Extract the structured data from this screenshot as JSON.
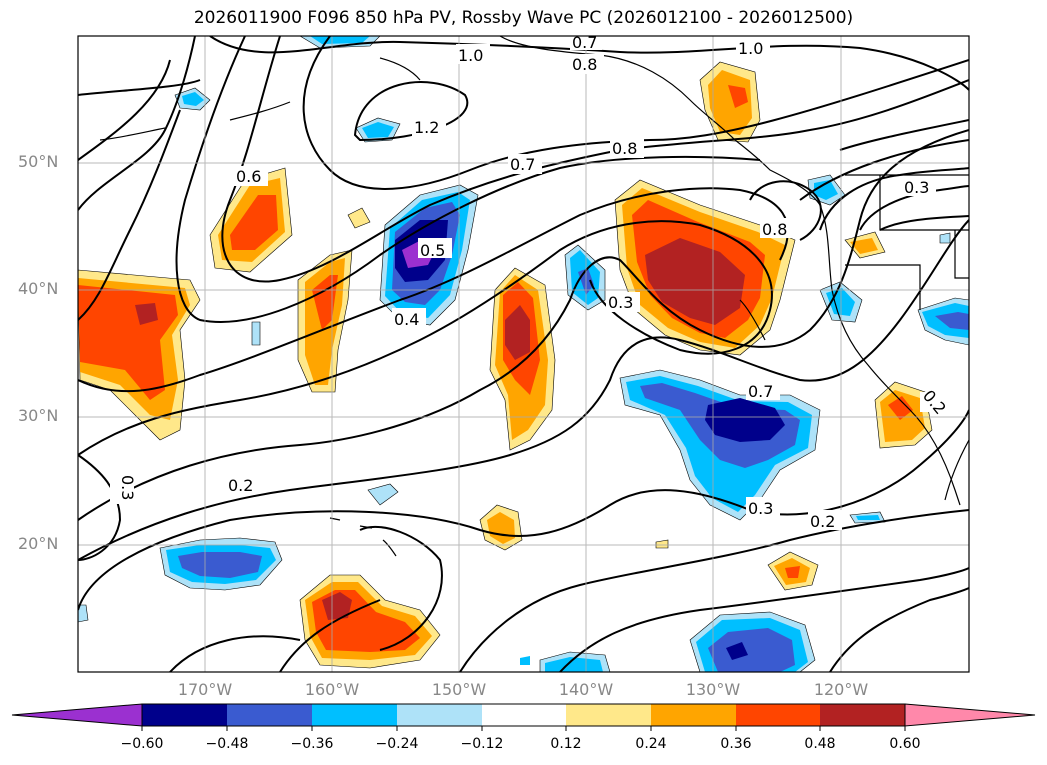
{
  "title": "2026011900 F096 850 hPa PV, Rossby Wave PC (2026012100 - 2026012500)",
  "lat_labels": [
    "50°N",
    "40°N",
    "30°N",
    "20°N"
  ],
  "lon_labels": [
    "170°W",
    "160°W",
    "150°W",
    "140°W",
    "130°W",
    "120°W"
  ],
  "contour_labels": [
    "1.0",
    "0.7",
    "0.8",
    "1.0",
    "1.2",
    "0.6",
    "0.7",
    "0.8",
    "0.8",
    "0.3",
    "0.5",
    "0.4",
    "0.3",
    "0.7",
    "0.3",
    "0.2",
    "0.3",
    "0.2",
    "0.2"
  ],
  "colorbar": {
    "ticks": [
      "−0.60",
      "−0.48",
      "−0.36",
      "−0.24",
      "−0.12",
      "0.12",
      "0.24",
      "0.36",
      "0.48",
      "0.60"
    ],
    "colors": [
      "#9b30d0",
      "#00008b",
      "#3a5bd0",
      "#00bfff",
      "#aee2f8",
      "#ffffff",
      "#ffe88a",
      "#ffa500",
      "#ff4500",
      "#b22222",
      "#ff88aa"
    ]
  },
  "shading_colors": {
    "neg1": "#aee2f8",
    "neg2": "#00bfff",
    "neg3": "#3a5bd0",
    "neg4": "#00008b",
    "neg5": "#9b30d0",
    "pos1": "#ffe88a",
    "pos2": "#ffa500",
    "pos3": "#ff4500",
    "pos4": "#b22222"
  }
}
